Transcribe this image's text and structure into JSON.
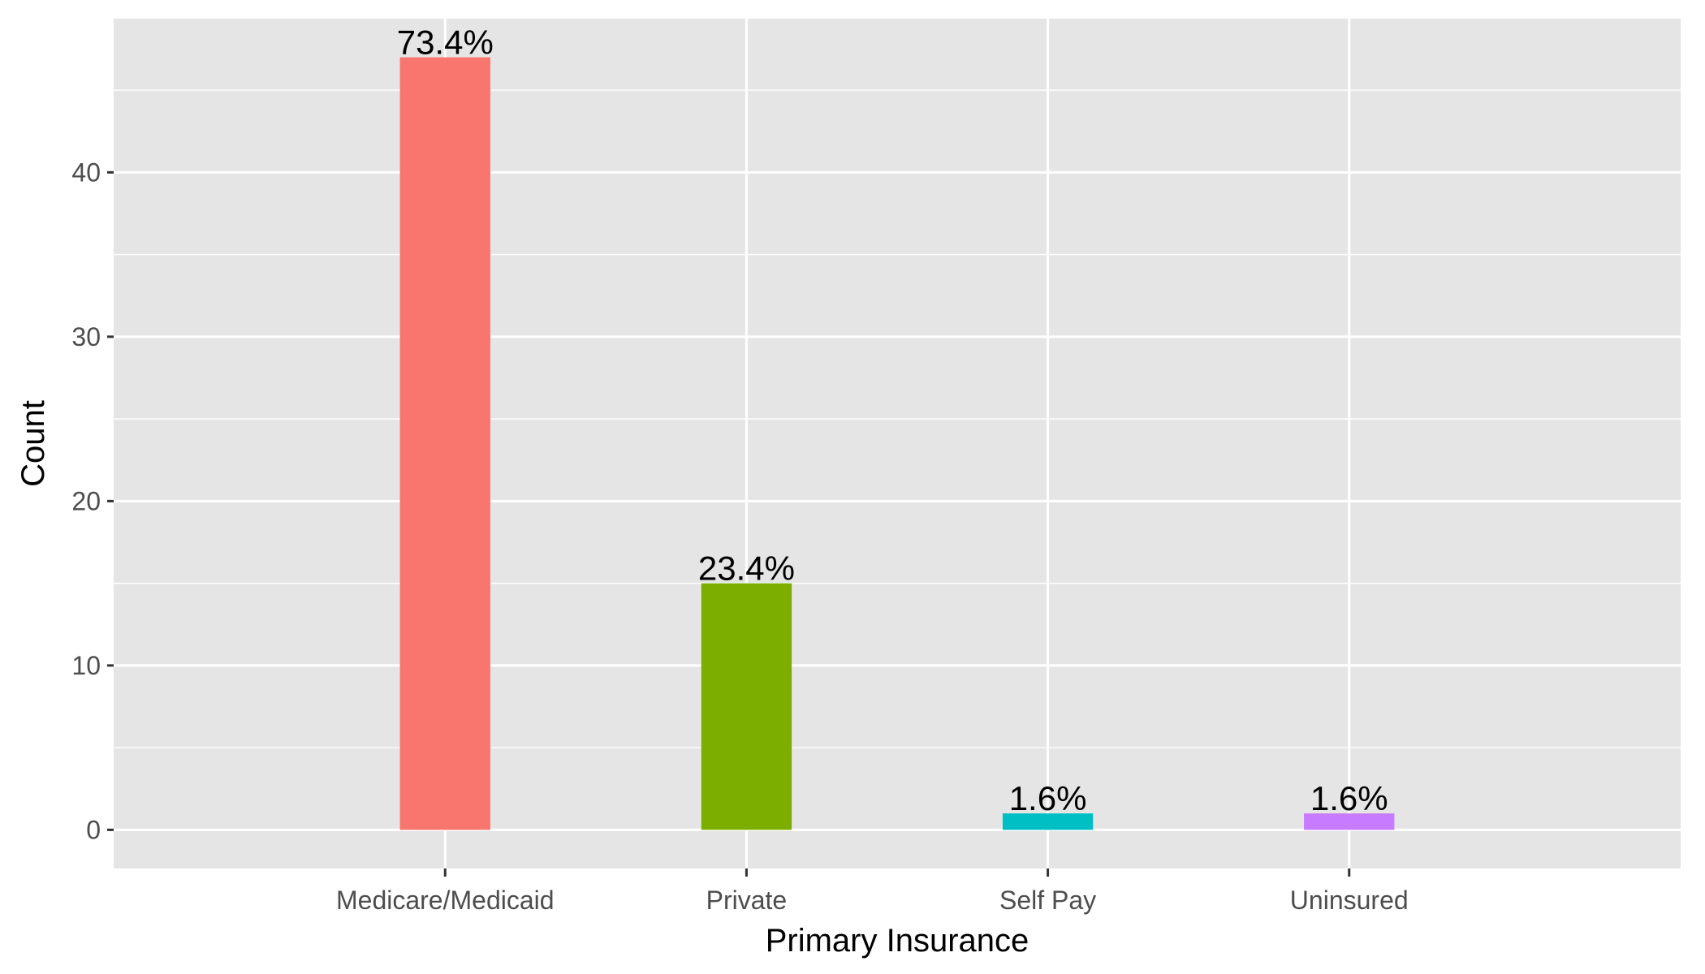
{
  "chart_data": {
    "type": "bar",
    "title": "",
    "xlabel": "Primary Insurance",
    "ylabel": "Count",
    "categories": [
      "Medicare/Medicaid",
      "Private",
      "Self Pay",
      "Uninsured"
    ],
    "values": [
      47,
      15,
      1,
      1
    ],
    "data_labels": [
      "73.4%",
      "23.4%",
      "1.6%",
      "1.6%"
    ],
    "colors": [
      "#F8766D",
      "#7CAE00",
      "#00BFC4",
      "#C77CFF"
    ],
    "ylim": [
      -2.35,
      49.35
    ],
    "y_ticks": [
      0,
      10,
      20,
      30,
      40
    ],
    "y_tick_labels": [
      "0",
      "10",
      "20",
      "30",
      "40"
    ],
    "grid": true,
    "legend": "none",
    "panel_background": "#E5E5E5",
    "grid_color": "#FFFFFF"
  }
}
